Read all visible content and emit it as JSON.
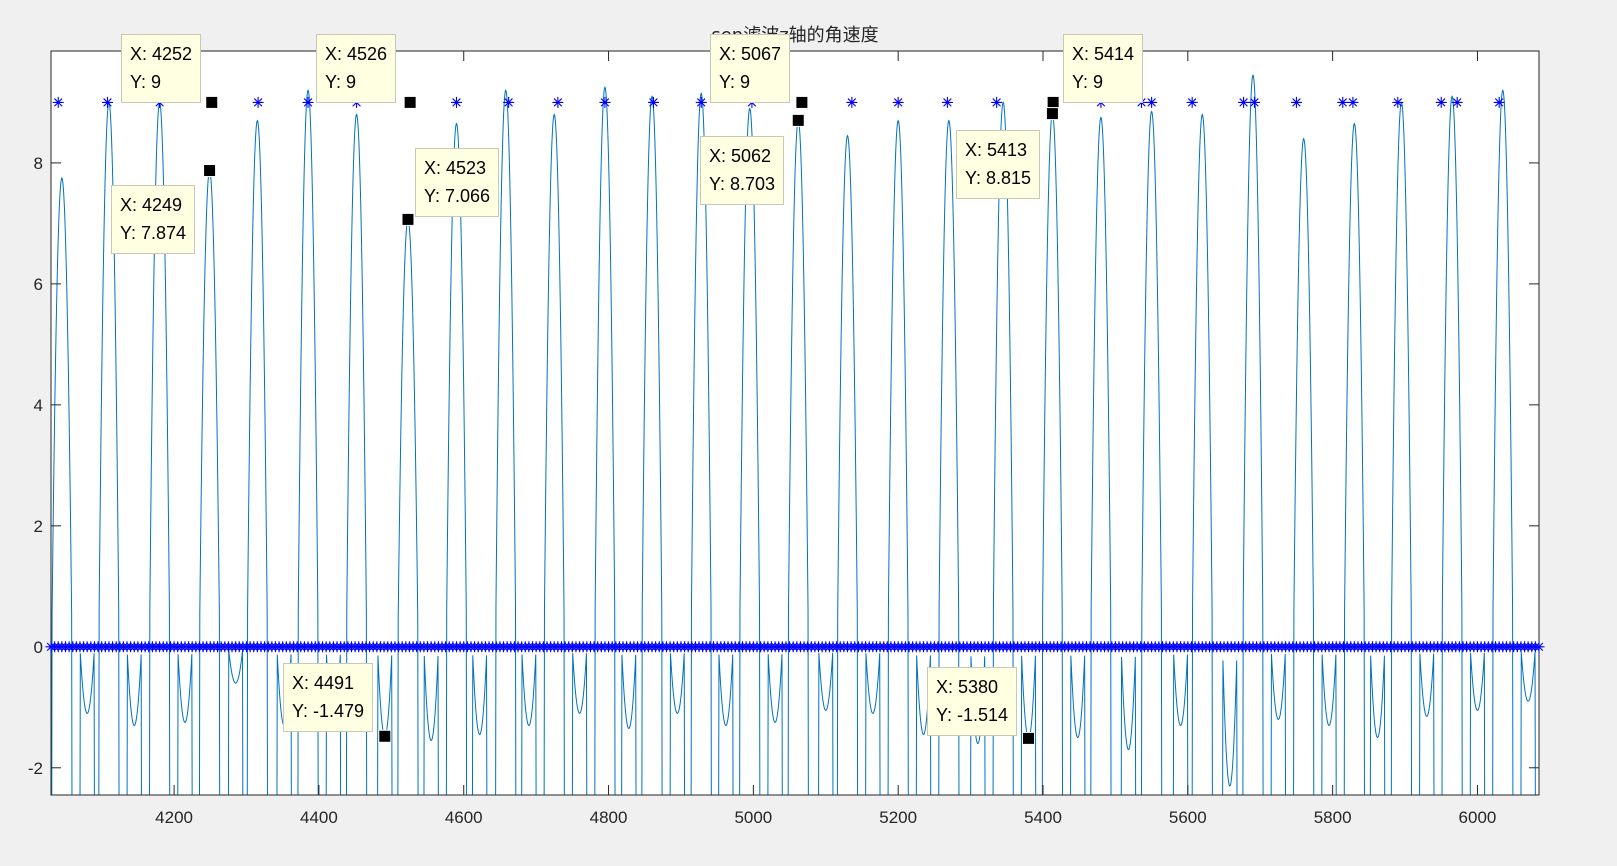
{
  "window": {
    "background": "#f0f0f0"
  },
  "chart_data": {
    "type": "line",
    "title": "sen滤波z轴的角速度",
    "xlim": [
      4030,
      6085
    ],
    "ylim": [
      -2.45,
      9.85
    ],
    "xticks": [
      4200,
      4400,
      4600,
      4800,
      5000,
      5200,
      5400,
      5600,
      5800,
      6000
    ],
    "yticks": [
      -2,
      0,
      2,
      4,
      6,
      8
    ],
    "grid": false,
    "series": [
      {
        "style": "line",
        "color": "#0072bd",
        "description": "signal: sharp positive peaks with small negative side lobes",
        "major_peaks": [
          [
            4045,
            7.75
          ],
          [
            4110,
            9.0
          ],
          [
            4180,
            9.0
          ],
          [
            4249,
            7.874
          ],
          [
            4315,
            8.7
          ],
          [
            4385,
            9.2
          ],
          [
            4452,
            8.8
          ],
          [
            4523,
            7.066
          ],
          [
            4590,
            8.65
          ],
          [
            4658,
            9.2
          ],
          [
            4725,
            8.8
          ],
          [
            4795,
            9.25
          ],
          [
            4860,
            9.1
          ],
          [
            4928,
            9.15
          ],
          [
            4995,
            8.9
          ],
          [
            5062,
            8.703
          ],
          [
            5130,
            8.45
          ],
          [
            5200,
            8.7
          ],
          [
            5270,
            8.7
          ],
          [
            5345,
            9.0
          ],
          [
            5413,
            8.815
          ],
          [
            5480,
            8.75
          ],
          [
            5550,
            8.85
          ],
          [
            5620,
            8.8
          ],
          [
            5690,
            9.45
          ],
          [
            5760,
            8.4
          ],
          [
            5830,
            8.65
          ],
          [
            5895,
            9.0
          ],
          [
            5965,
            9.1
          ],
          [
            6035,
            9.2
          ]
        ],
        "minor_peaks": [
          [
            4080,
            -1.1
          ],
          [
            4145,
            -1.3
          ],
          [
            4215,
            -1.25
          ],
          [
            4285,
            -0.6
          ],
          [
            4352,
            -1.3
          ],
          [
            4420,
            -1.35
          ],
          [
            4491,
            -1.479
          ],
          [
            4555,
            -1.55
          ],
          [
            4622,
            -1.45
          ],
          [
            4690,
            -1.3
          ],
          [
            4760,
            -1.1
          ],
          [
            4828,
            -1.35
          ],
          [
            4895,
            -1.1
          ],
          [
            4962,
            -1.3
          ],
          [
            5030,
            -1.25
          ],
          [
            5100,
            -1.05
          ],
          [
            5165,
            -1.1
          ],
          [
            5235,
            -1.45
          ],
          [
            5310,
            -1.6
          ],
          [
            5380,
            -1.514
          ],
          [
            5448,
            -1.5
          ],
          [
            5518,
            -1.7
          ],
          [
            5590,
            -1.3
          ],
          [
            5658,
            -2.3
          ],
          [
            5725,
            -1.2
          ],
          [
            5795,
            -1.3
          ],
          [
            5862,
            -1.5
          ],
          [
            5930,
            -1.15
          ],
          [
            6000,
            -1.05
          ],
          [
            6070,
            -0.9
          ]
        ]
      },
      {
        "style": "markers",
        "marker": "*",
        "color": "#0000ff",
        "level_points": [
          [
            4040,
            9
          ],
          [
            4108,
            9
          ],
          [
            4180,
            9
          ],
          [
            4252,
            9
          ],
          [
            4316,
            9
          ],
          [
            4385,
            9
          ],
          [
            4452,
            9
          ],
          [
            4526,
            9
          ],
          [
            4590,
            9
          ],
          [
            4662,
            9
          ],
          [
            4730,
            9
          ],
          [
            4795,
            9
          ],
          [
            4862,
            9
          ],
          [
            4928,
            9
          ],
          [
            4998,
            9
          ],
          [
            5067,
            9
          ],
          [
            5136,
            9
          ],
          [
            5200,
            9
          ],
          [
            5268,
            9
          ],
          [
            5336,
            9
          ],
          [
            5414,
            9
          ],
          [
            5480,
            9
          ],
          [
            5536,
            9
          ],
          [
            5550,
            9
          ],
          [
            5606,
            9
          ],
          [
            5677,
            9
          ],
          [
            5692,
            9
          ],
          [
            5750,
            9
          ],
          [
            5814,
            9
          ],
          [
            5828,
            9
          ],
          [
            5890,
            9
          ],
          [
            5950,
            9
          ],
          [
            5972,
            9
          ],
          [
            6030,
            9
          ]
        ],
        "baseline": {
          "y": 0,
          "x_from": 4030,
          "x_to": 6085,
          "step": 5
        }
      }
    ],
    "datatips": [
      {
        "x": 4252,
        "y": 9,
        "x_label": "X: 4252",
        "y_label": "Y: 9"
      },
      {
        "x": 4249,
        "y": 7.874,
        "x_label": "X: 4249",
        "y_label": "Y: 7.874"
      },
      {
        "x": 4526,
        "y": 9,
        "x_label": "X: 4526",
        "y_label": "Y: 9"
      },
      {
        "x": 4523,
        "y": 7.066,
        "x_label": "X: 4523",
        "y_label": "Y: 7.066"
      },
      {
        "x": 5067,
        "y": 9,
        "x_label": "X: 5067",
        "y_label": "Y: 9"
      },
      {
        "x": 5062,
        "y": 8.703,
        "x_label": "X: 5062",
        "y_label": "Y: 8.703"
      },
      {
        "x": 5414,
        "y": 9,
        "x_label": "X: 5414",
        "y_label": "Y: 9"
      },
      {
        "x": 5413,
        "y": 8.815,
        "x_label": "X: 5413",
        "y_label": "Y: 8.815"
      },
      {
        "x": 4491,
        "y": -1.479,
        "x_label": "X: 4491",
        "y_label": "Y: -1.479"
      },
      {
        "x": 5380,
        "y": -1.514,
        "x_label": "X: 5380",
        "y_label": "Y: -1.514"
      }
    ]
  }
}
